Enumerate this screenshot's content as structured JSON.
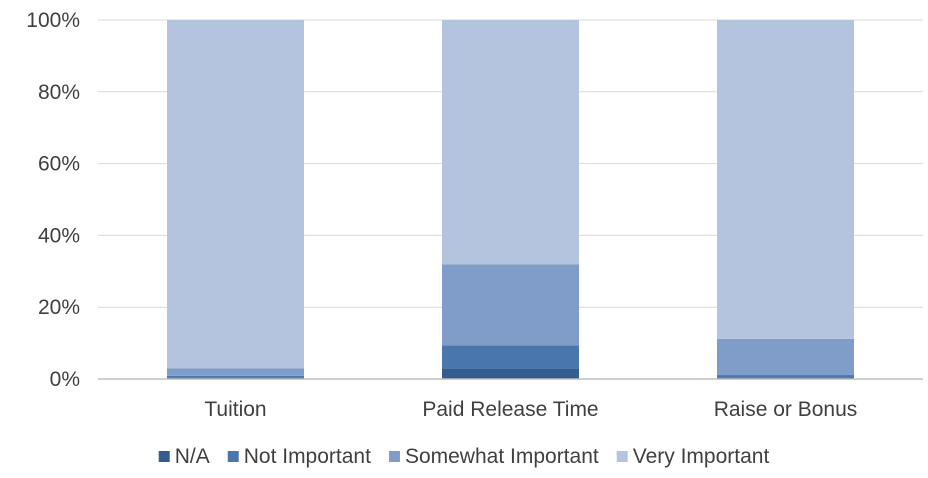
{
  "chart_data": {
    "type": "bar",
    "stacked": true,
    "percent": true,
    "categories": [
      "Tuition",
      "Paid Release Time",
      "Raise or Bonus"
    ],
    "series": [
      {
        "name": "N/A",
        "color": "#335d8f",
        "values": [
          0.3,
          2.9,
          0.3
        ]
      },
      {
        "name": "Not Important",
        "color": "#4a76ae",
        "values": [
          0.6,
          6.5,
          0.8
        ]
      },
      {
        "name": "Somewhat Important",
        "color": "#809dc9",
        "values": [
          2.1,
          22.5,
          10.1
        ]
      },
      {
        "name": "Very Important",
        "color": "#b5c4de",
        "values": [
          97.0,
          68.1,
          88.8
        ]
      }
    ],
    "ylim": [
      0,
      100
    ],
    "yticks": [
      "0%",
      "20%",
      "40%",
      "60%",
      "80%",
      "100%"
    ],
    "grid": true,
    "legend": "bottom"
  }
}
